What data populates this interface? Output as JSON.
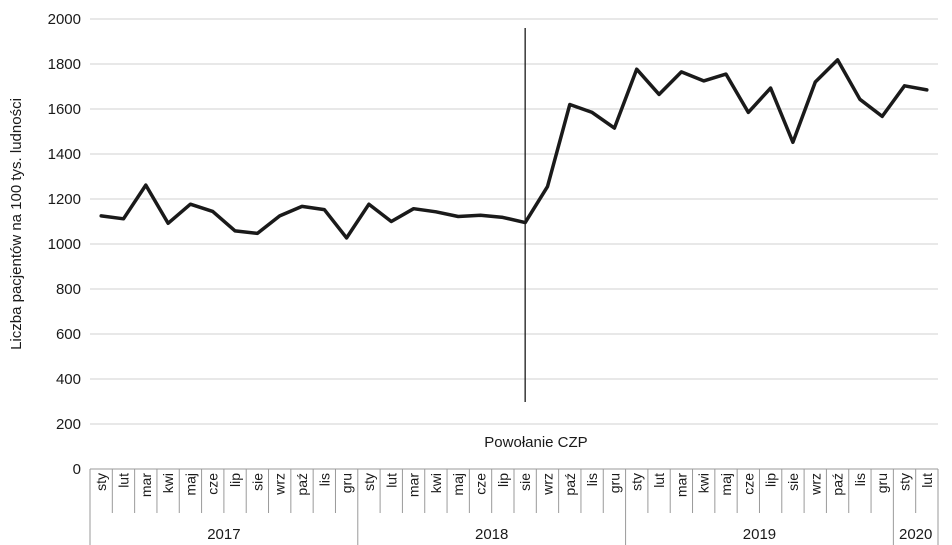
{
  "chart_data": {
    "type": "line",
    "ylabel": "Liczba pacjentów na 100 tys. ludności",
    "ylim": [
      0,
      2000
    ],
    "yticks": [
      "0",
      "200",
      "400",
      "600",
      "800",
      "1000",
      "1200",
      "1400",
      "1600",
      "1800",
      "2000"
    ],
    "grid": true,
    "years": [
      {
        "label": "2017",
        "months": 12
      },
      {
        "label": "2018",
        "months": 12
      },
      {
        "label": "2019",
        "months": 12
      },
      {
        "label": "2020",
        "months": 2
      }
    ],
    "categories": [
      "sty",
      "lut",
      "mar",
      "kwi",
      "maj",
      "cze",
      "lip",
      "sie",
      "wrz",
      "paź",
      "lis",
      "gru",
      "sty",
      "lut",
      "mar",
      "kwi",
      "maj",
      "cze",
      "lip",
      "sie",
      "wrz",
      "paź",
      "lis",
      "gru",
      "sty",
      "lut",
      "mar",
      "kwi",
      "maj",
      "cze",
      "lip",
      "sie",
      "wrz",
      "paź",
      "lis",
      "gru",
      "sty",
      "lut"
    ],
    "values": [
      1125,
      1112,
      1262,
      1092,
      1177,
      1145,
      1058,
      1047,
      1125,
      1167,
      1153,
      1027,
      1177,
      1100,
      1157,
      1143,
      1122,
      1128,
      1118,
      1095,
      1255,
      1620,
      1585,
      1515,
      1777,
      1665,
      1765,
      1725,
      1755,
      1585,
      1693,
      1452,
      1720,
      1818,
      1643,
      1567,
      1703,
      1685
    ],
    "annotation": {
      "label": "Powołanie CZP",
      "category_index": 19
    }
  }
}
